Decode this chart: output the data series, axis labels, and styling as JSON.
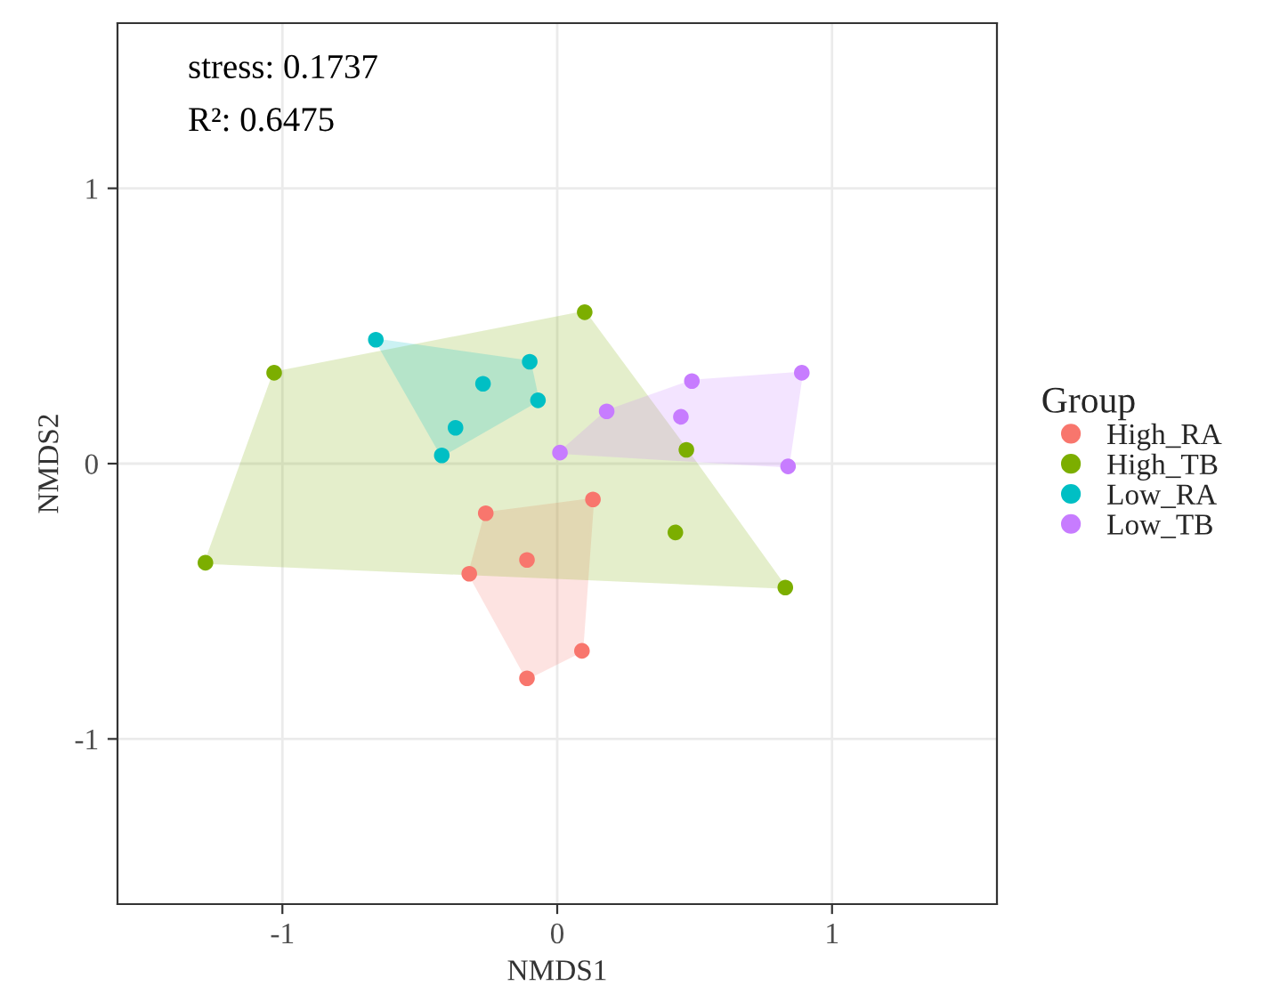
{
  "chart_data": {
    "type": "scatter",
    "xlabel": "NMDS1",
    "ylabel": "NMDS2",
    "legend_title": "Group",
    "annotations": [
      "stress: 0.1737",
      "R²: 0.6475"
    ],
    "xlim": [
      -1.6,
      1.6
    ],
    "ylim": [
      -1.6,
      1.6
    ],
    "xticks": [
      {
        "value": -1,
        "label": "-1"
      },
      0,
      1
    ],
    "yticks": [
      {
        "value": -1,
        "label": "-1"
      },
      0,
      1
    ],
    "grid": true,
    "legend": "right",
    "marker": "circle",
    "series": [
      {
        "name": "High_RA",
        "color": "#F8766D",
        "x": [
          -0.26,
          0.13,
          -0.11,
          -0.32,
          0.09,
          -0.11
        ],
        "values": [
          -0.18,
          -0.13,
          -0.35,
          -0.4,
          -0.68,
          -0.78
        ]
      },
      {
        "name": "High_TB",
        "color": "#7CAE00",
        "x": [
          -1.03,
          0.1,
          -1.28,
          0.83,
          0.47,
          0.43
        ],
        "values": [
          0.33,
          0.55,
          -0.36,
          -0.45,
          0.05,
          -0.25
        ]
      },
      {
        "name": "Low_RA",
        "color": "#00BFC4",
        "x": [
          -0.66,
          -0.1,
          -0.07,
          -0.27,
          -0.37,
          -0.42
        ],
        "values": [
          0.45,
          0.37,
          0.23,
          0.29,
          0.13,
          0.03
        ]
      },
      {
        "name": "Low_TB",
        "color": "#C77CFF",
        "x": [
          0.01,
          0.18,
          0.49,
          0.89,
          0.84,
          0.45
        ],
        "values": [
          0.04,
          0.19,
          0.3,
          0.33,
          -0.01,
          0.17
        ]
      }
    ]
  }
}
